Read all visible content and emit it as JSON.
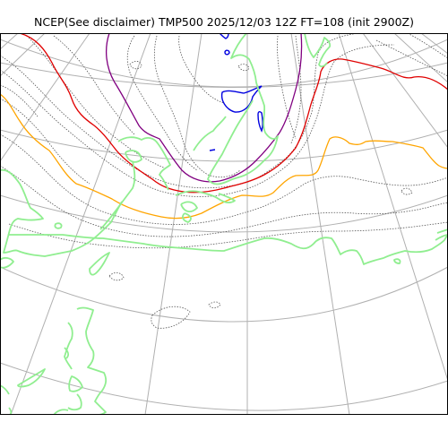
{
  "title": "NCEP(See disclaimer) TMP500 2025/12/03 12Z FT=108 (init 2900Z)",
  "colors": {
    "coastline": "#90ee90",
    "graticule": "#b0b0b0",
    "isotherm_minor": "#555555",
    "isotherm_red": "#e00000",
    "isotherm_orange": "#ffa500",
    "isotherm_purple": "#800080",
    "isotherm_blue": "#0000e0",
    "frame": "#000000"
  }
}
